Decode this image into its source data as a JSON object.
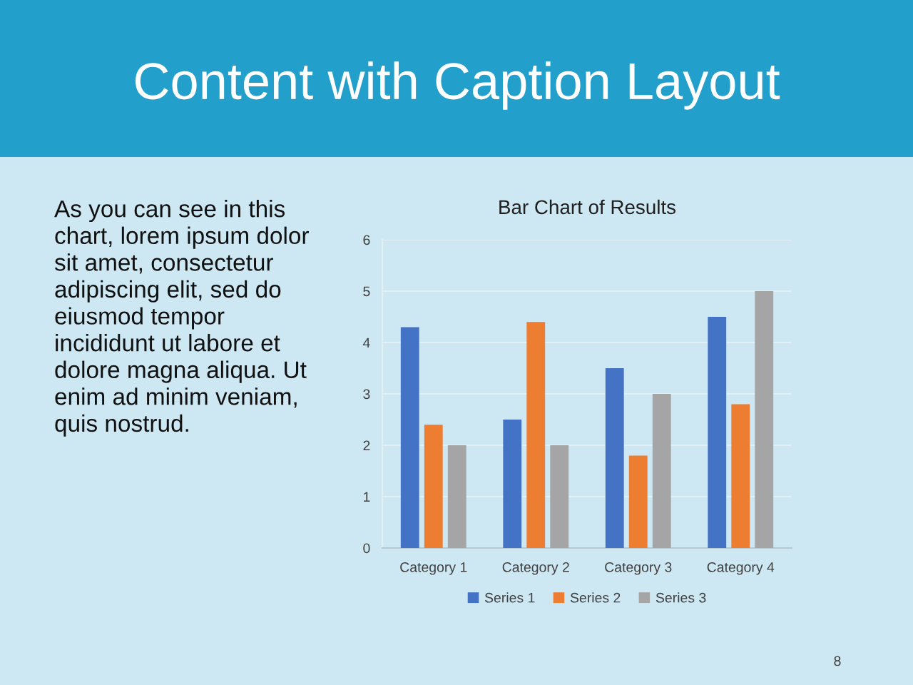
{
  "chart_data": {
    "type": "bar",
    "title": "Bar Chart of Results",
    "categories": [
      "Category 1",
      "Category 2",
      "Category 3",
      "Category 4"
    ],
    "series": [
      {
        "name": "Series 1",
        "color": "#4472c4",
        "values": [
          4.3,
          2.5,
          3.5,
          4.5
        ]
      },
      {
        "name": "Series 2",
        "color": "#ed7d31",
        "values": [
          2.4,
          4.4,
          1.8,
          2.8
        ]
      },
      {
        "name": "Series 3",
        "color": "#a5a5a5",
        "values": [
          2,
          2,
          3,
          5
        ]
      }
    ],
    "ylim": [
      0,
      6
    ],
    "yticks": [
      0,
      1,
      2,
      3,
      4,
      5,
      6
    ],
    "grid": "y",
    "legend": "bottom",
    "annotations": [
      "Content with Caption Layout",
      "As you can see in this\nchart, lorem ipsum dolor\nsit amet, consectetur\nadipiscing elit, sed do\neiusmod tempor\nincididunt ut labore et\ndolore magna aliqua. Ut\nenim ad minim veniam,\nquis nostrud.",
      "8"
    ]
  }
}
